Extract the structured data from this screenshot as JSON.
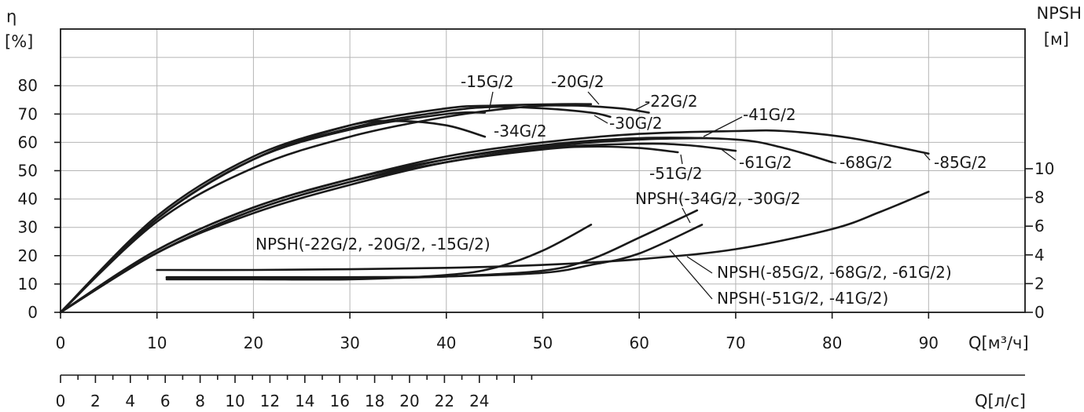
{
  "chart_data": {
    "type": "line",
    "grid": true,
    "axes": {
      "y_left": {
        "symbol": "η",
        "unit": "[%]",
        "ticks": [
          "0",
          "10",
          "20",
          "30",
          "40",
          "50",
          "60",
          "70",
          "80"
        ],
        "range": [
          0,
          100
        ]
      },
      "y_right": {
        "title": "NPSH",
        "unit": "[м]",
        "ticks": [
          "0",
          "2",
          "4",
          "6",
          "8",
          "10"
        ],
        "range": [
          0,
          22
        ]
      },
      "x_flow_m3h": {
        "ticks": [
          "0",
          "10",
          "20",
          "30",
          "40",
          "50",
          "60",
          "70",
          "80",
          "90"
        ],
        "label": "Q[м³/ч]",
        "range": [
          0,
          100
        ]
      },
      "x_flow_ls": {
        "ticks": [
          "0",
          "2",
          "4",
          "6",
          "8",
          "10",
          "12",
          "14",
          "16",
          "18",
          "20",
          "22",
          "24"
        ],
        "label": "Q[л/с]"
      }
    },
    "efficiency_curves": [
      {
        "name": "-15G/2",
        "points": [
          [
            0,
            0
          ],
          [
            10,
            34
          ],
          [
            20,
            55
          ],
          [
            30,
            66
          ],
          [
            35,
            67.5
          ],
          [
            40,
            66
          ],
          [
            44,
            62
          ]
        ]
      },
      {
        "name": "-22G/2",
        "points": [
          [
            0,
            0
          ],
          [
            10,
            33
          ],
          [
            20,
            54
          ],
          [
            30,
            65
          ],
          [
            40,
            71
          ],
          [
            45,
            72.5
          ],
          [
            50,
            72
          ],
          [
            55,
            70.5
          ],
          [
            57,
            69
          ]
        ]
      },
      {
        "name": "-20G/2",
        "points": [
          [
            0,
            0
          ],
          [
            10,
            33
          ],
          [
            20,
            54
          ],
          [
            30,
            64.5
          ],
          [
            40,
            70
          ],
          [
            44,
            70.5
          ]
        ]
      },
      {
        "name": "-30G/2",
        "points": [
          [
            0,
            0
          ],
          [
            10,
            33
          ],
          [
            20,
            54
          ],
          [
            30,
            66
          ],
          [
            40,
            72
          ],
          [
            45,
            73
          ],
          [
            52,
            73.5
          ],
          [
            55,
            73.5
          ]
        ]
      },
      {
        "name": "-34G/2",
        "points": [
          [
            0,
            0
          ],
          [
            10,
            32
          ],
          [
            20,
            51
          ],
          [
            30,
            62
          ],
          [
            40,
            69
          ],
          [
            48,
            72.5
          ],
          [
            53,
            73
          ],
          [
            58,
            72
          ],
          [
            61,
            70.5
          ]
        ]
      },
      {
        "name": "-41G/2",
        "points": [
          [
            0,
            0
          ],
          [
            10,
            21
          ],
          [
            20,
            35
          ],
          [
            30,
            45
          ],
          [
            40,
            53
          ],
          [
            50,
            57.5
          ],
          [
            55,
            58.5
          ],
          [
            60,
            58
          ],
          [
            64,
            56.5
          ]
        ]
      },
      {
        "name": "-51G/2",
        "points": [
          [
            0,
            0
          ],
          [
            10,
            22
          ],
          [
            20,
            37
          ],
          [
            30,
            47
          ],
          [
            40,
            54
          ],
          [
            50,
            58.5
          ],
          [
            60,
            61
          ],
          [
            67,
            61.5
          ]
        ]
      },
      {
        "name": "-61G/2",
        "points": [
          [
            0,
            0
          ],
          [
            10,
            21
          ],
          [
            20,
            36
          ],
          [
            30,
            46
          ],
          [
            40,
            53
          ],
          [
            50,
            58
          ],
          [
            60,
            59.5
          ],
          [
            65,
            59
          ],
          [
            70,
            57
          ]
        ]
      },
      {
        "name": "-68G/2",
        "points": [
          [
            0,
            0
          ],
          [
            10,
            21
          ],
          [
            20,
            36
          ],
          [
            30,
            46
          ],
          [
            40,
            54
          ],
          [
            50,
            59
          ],
          [
            60,
            61.5
          ],
          [
            70,
            61
          ],
          [
            75,
            58
          ],
          [
            80,
            53
          ]
        ]
      },
      {
        "name": "-85G/2",
        "points": [
          [
            0,
            0
          ],
          [
            10,
            22
          ],
          [
            20,
            37
          ],
          [
            30,
            47
          ],
          [
            40,
            55
          ],
          [
            50,
            60
          ],
          [
            60,
            63
          ],
          [
            70,
            64
          ],
          [
            75,
            64
          ],
          [
            82,
            61.5
          ],
          [
            90,
            56
          ]
        ]
      }
    ],
    "npsh_curves": [
      {
        "name": "NPSH(-22G/2, -20G/2, -15G/2)",
        "points": [
          [
            11,
            2.3
          ],
          [
            20,
            2.3
          ],
          [
            30,
            2.3
          ],
          [
            40,
            2.6
          ],
          [
            45,
            3.1
          ],
          [
            50,
            4.3
          ],
          [
            55,
            6.1
          ]
        ]
      },
      {
        "name": "NPSH(-34G/2, -30G/2",
        "points": [
          [
            11,
            2.4
          ],
          [
            20,
            2.35
          ],
          [
            30,
            2.35
          ],
          [
            40,
            2.5
          ],
          [
            50,
            2.9
          ],
          [
            55,
            3.7
          ],
          [
            60,
            5.2
          ],
          [
            66,
            7.1
          ]
        ]
      },
      {
        "name": "NPSH(-51G/2, -41G/2)",
        "points": [
          [
            11,
            2.45
          ],
          [
            20,
            2.45
          ],
          [
            30,
            2.45
          ],
          [
            40,
            2.5
          ],
          [
            50,
            2.75
          ],
          [
            55,
            3.3
          ],
          [
            60,
            4.1
          ],
          [
            66.5,
            6.1
          ]
        ]
      },
      {
        "name": "NPSH(-85G/2, -68G/2, -61G/2)",
        "points": [
          [
            10,
            2.95
          ],
          [
            20,
            2.95
          ],
          [
            30,
            3.0
          ],
          [
            40,
            3.1
          ],
          [
            50,
            3.3
          ],
          [
            60,
            3.7
          ],
          [
            70,
            4.4
          ],
          [
            80,
            5.8
          ],
          [
            85,
            7.0
          ],
          [
            90,
            8.4
          ]
        ]
      }
    ],
    "annotations": [
      "-15G/2",
      "-20G/2",
      "-22G/2",
      "-30G/2",
      "-34G/2",
      "-41G/2",
      "-51G/2",
      "-61G/2",
      "-68G/2",
      "-85G/2",
      "NPSH(-22G/2, -20G/2, -15G/2)",
      "NPSH(-34G/2, -30G/2",
      "NPSH(-85G/2, -68G/2, -61G/2)",
      "NPSH(-51G/2, -41G/2)"
    ]
  }
}
